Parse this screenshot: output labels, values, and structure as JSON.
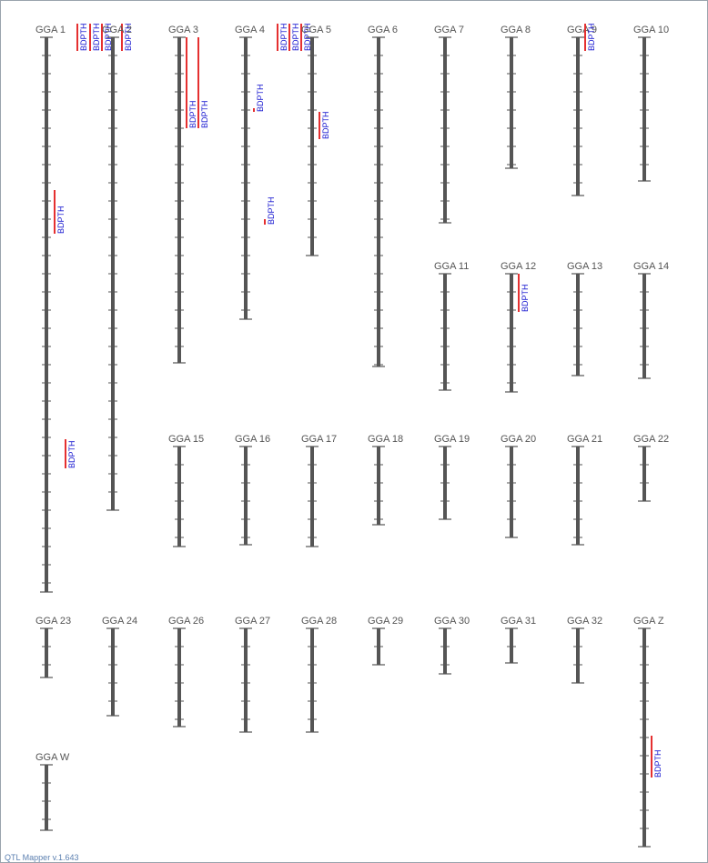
{
  "app": {
    "version_label": "QTL Mapper v.1.643"
  },
  "style": {
    "chromosome_color": "#555555",
    "qtl_bar_color": "#e53030",
    "qtl_label_color": "#1a1ad0",
    "label_color": "#555555"
  },
  "chart_data": {
    "type": "chromosome-map",
    "trait": "BDPTH",
    "units": "cM",
    "chromosomes": [
      {
        "name": "GGA 1",
        "length": 610,
        "qtls": [
          {
            "start": -15,
            "end": 15
          },
          {
            "start": -15,
            "end": 15
          },
          {
            "start": -15,
            "end": 15
          },
          {
            "start": -15,
            "end": 15
          },
          {
            "start": 168,
            "end": 216
          },
          {
            "start": 442,
            "end": 474
          }
        ]
      },
      {
        "name": "GGA 2",
        "length": 520,
        "qtls": []
      },
      {
        "name": "GGA 3",
        "length": 358,
        "qtls": [
          {
            "start": 0,
            "end": 100
          },
          {
            "start": 0,
            "end": 100
          }
        ]
      },
      {
        "name": "GGA 4",
        "length": 310,
        "qtls": [
          {
            "start": -15,
            "end": 15
          },
          {
            "start": -15,
            "end": 15
          },
          {
            "start": -15,
            "end": 15
          },
          {
            "start": 78,
            "end": 82
          },
          {
            "start": 200,
            "end": 206
          }
        ]
      },
      {
        "name": "GGA 5",
        "length": 240,
        "qtls": [
          {
            "start": 82,
            "end": 112
          }
        ]
      },
      {
        "name": "GGA 6",
        "length": 362,
        "qtls": []
      },
      {
        "name": "GGA 7",
        "length": 204,
        "qtls": []
      },
      {
        "name": "GGA 8",
        "length": 144,
        "qtls": []
      },
      {
        "name": "GGA 9",
        "length": 174,
        "qtls": [
          {
            "start": -15,
            "end": 15
          }
        ]
      },
      {
        "name": "GGA 10",
        "length": 158,
        "qtls": []
      },
      {
        "name": "GGA 11",
        "length": 128,
        "qtls": []
      },
      {
        "name": "GGA 12",
        "length": 130,
        "qtls": [
          {
            "start": 0,
            "end": 42
          }
        ]
      },
      {
        "name": "GGA 13",
        "length": 112,
        "qtls": []
      },
      {
        "name": "GGA 14",
        "length": 115,
        "qtls": []
      },
      {
        "name": "GGA 15",
        "length": 110,
        "qtls": []
      },
      {
        "name": "GGA 16",
        "length": 108,
        "qtls": []
      },
      {
        "name": "GGA 17",
        "length": 110,
        "qtls": []
      },
      {
        "name": "GGA 18",
        "length": 86,
        "qtls": []
      },
      {
        "name": "GGA 19",
        "length": 80,
        "qtls": []
      },
      {
        "name": "GGA 20",
        "length": 100,
        "qtls": []
      },
      {
        "name": "GGA 21",
        "length": 108,
        "qtls": []
      },
      {
        "name": "GGA 22",
        "length": 60,
        "qtls": []
      },
      {
        "name": "GGA 23",
        "length": 54,
        "qtls": []
      },
      {
        "name": "GGA 24",
        "length": 96,
        "qtls": []
      },
      {
        "name": "GGA 26",
        "length": 108,
        "qtls": []
      },
      {
        "name": "GGA 27",
        "length": 114,
        "qtls": []
      },
      {
        "name": "GGA 28",
        "length": 114,
        "qtls": []
      },
      {
        "name": "GGA 29",
        "length": 40,
        "qtls": []
      },
      {
        "name": "GGA 30",
        "length": 50,
        "qtls": []
      },
      {
        "name": "GGA 31",
        "length": 38,
        "qtls": []
      },
      {
        "name": "GGA 32",
        "length": 60,
        "qtls": []
      },
      {
        "name": "GGA Z",
        "length": 240,
        "qtls": [
          {
            "start": 118,
            "end": 164
          }
        ]
      },
      {
        "name": "GGA W",
        "length": 72,
        "qtls": []
      }
    ]
  }
}
